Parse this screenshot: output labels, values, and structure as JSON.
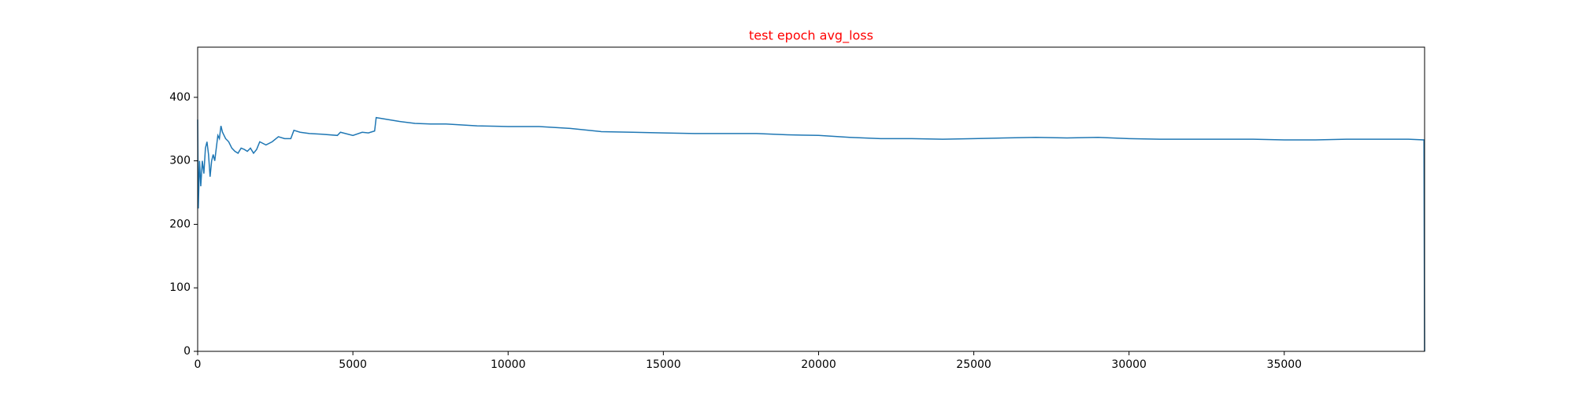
{
  "chart_data": {
    "type": "line",
    "title": "test epoch avg_loss",
    "title_color": "#ff0000",
    "x": [
      0,
      20,
      60,
      100,
      150,
      200,
      250,
      300,
      350,
      400,
      450,
      500,
      550,
      600,
      650,
      700,
      750,
      800,
      900,
      1000,
      1100,
      1200,
      1300,
      1400,
      1500,
      1600,
      1700,
      1800,
      1900,
      2000,
      2200,
      2400,
      2600,
      2800,
      3000,
      3100,
      3300,
      3600,
      4000,
      4500,
      4600,
      5000,
      5300,
      5500,
      5700,
      5750,
      6000,
      6500,
      7000,
      7500,
      8000,
      9000,
      10000,
      11000,
      12000,
      13000,
      14000,
      15000,
      16000,
      17000,
      18000,
      19000,
      20000,
      21000,
      22000,
      23000,
      24000,
      25000,
      26000,
      27000,
      28000,
      29000,
      30000,
      31000,
      32000,
      33000,
      34000,
      35000,
      36000,
      37000,
      38000,
      39000,
      39500,
      39520
    ],
    "values": [
      365,
      225,
      300,
      260,
      300,
      280,
      320,
      330,
      310,
      275,
      300,
      310,
      300,
      320,
      340,
      335,
      355,
      345,
      335,
      330,
      320,
      315,
      312,
      320,
      318,
      315,
      320,
      312,
      318,
      330,
      325,
      330,
      338,
      335,
      335,
      348,
      345,
      343,
      342,
      340,
      345,
      340,
      345,
      344,
      347,
      368,
      366,
      362,
      359,
      358,
      358,
      355,
      354,
      354,
      351,
      346,
      345,
      344,
      343,
      343,
      343,
      341,
      340,
      337,
      335,
      335,
      334,
      335,
      336,
      337,
      336,
      337,
      335,
      334,
      334,
      334,
      334,
      333,
      333,
      334,
      334,
      334,
      333,
      0
    ],
    "color": "#1f77b4",
    "xlim": [
      0,
      39520
    ],
    "xticks": [
      0,
      5000,
      10000,
      15000,
      20000,
      25000,
      30000,
      35000
    ],
    "ylim": [
      0,
      479
    ],
    "yticks": [
      0,
      100,
      200,
      300,
      400
    ]
  }
}
